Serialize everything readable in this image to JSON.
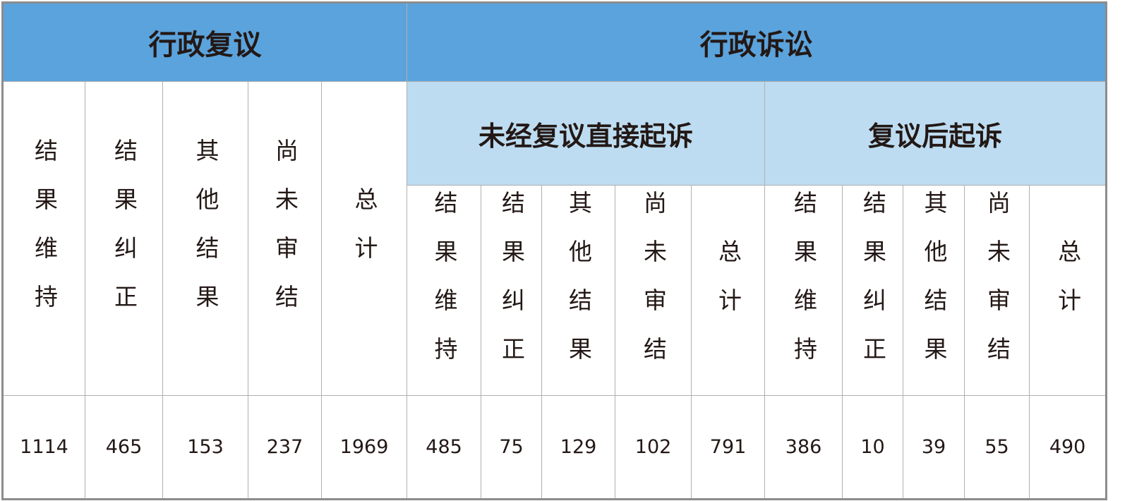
{
  "headers": {
    "review": "行政复议",
    "litigation": "行政诉讼",
    "direct": "未经复议直接起诉",
    "after": "复议后起诉"
  },
  "sub_labels": [
    "结果维持",
    "结果纠正",
    "其他结果",
    "尚未审结",
    "总计"
  ],
  "values": {
    "review": [
      "1114",
      "465",
      "153",
      "237",
      "1969"
    ],
    "direct": [
      "485",
      "75",
      "129",
      "102",
      "791"
    ],
    "after": [
      "386",
      "10",
      "39",
      "55",
      "490"
    ]
  },
  "colors": {
    "header": "#5ba3dc",
    "subheader": "#bddcf1",
    "border": "#b0b0b0"
  }
}
